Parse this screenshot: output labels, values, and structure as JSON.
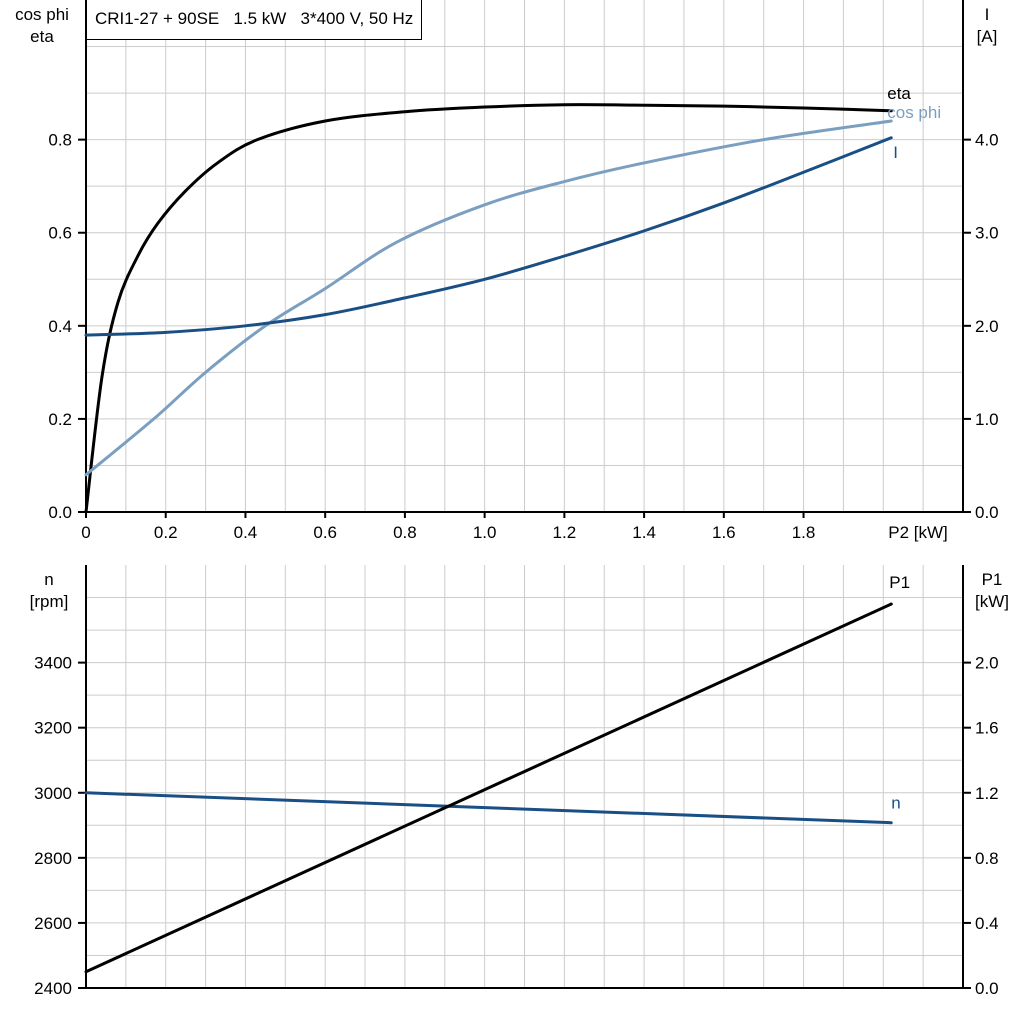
{
  "title": "CRI1-27 + 90SE   1.5 kW   3*400 V, 50 Hz",
  "chart_data": [
    {
      "type": "line",
      "xlabel": "P2 [kW]",
      "xlim": [
        0,
        2.2
      ],
      "xticks": [
        "0",
        "0.2",
        "0.4",
        "0.6",
        "0.8",
        "1.0",
        "1.2",
        "1.4",
        "1.6",
        "1.8"
      ],
      "ylabel_left": [
        "cos phi",
        "eta"
      ],
      "ylim_left": [
        0,
        1.1
      ],
      "yticks_left": [
        "0.0",
        "0.2",
        "0.4",
        "0.6",
        "0.8"
      ],
      "ylabel_right": [
        "I",
        "[A]"
      ],
      "ylim_right": [
        0,
        5.5
      ],
      "yticks_right": [
        "0.0",
        "1.0",
        "2.0",
        "3.0",
        "4.0"
      ],
      "grid": true,
      "series": [
        {
          "name": "eta",
          "axis": "left",
          "color": "#000000",
          "x": [
            0,
            0.04,
            0.08,
            0.13,
            0.18,
            0.25,
            0.33,
            0.43,
            0.6,
            0.8,
            1.0,
            1.2,
            1.4,
            1.6,
            1.8,
            2.02
          ],
          "y": [
            0,
            0.29,
            0.45,
            0.55,
            0.62,
            0.69,
            0.75,
            0.8,
            0.84,
            0.86,
            0.87,
            0.875,
            0.874,
            0.872,
            0.868,
            0.862
          ]
        },
        {
          "name": "cos phi",
          "axis": "left",
          "color": "#7b9fc0",
          "x": [
            0,
            0.17,
            0.3,
            0.45,
            0.6,
            0.78,
            1.0,
            1.2,
            1.4,
            1.7,
            2.02
          ],
          "y": [
            0.08,
            0.2,
            0.3,
            0.4,
            0.48,
            0.58,
            0.66,
            0.71,
            0.75,
            0.8,
            0.84
          ]
        },
        {
          "name": "I",
          "axis": "right",
          "color": "#1a4f85",
          "x": [
            0,
            0.2,
            0.4,
            0.6,
            0.8,
            1.0,
            1.2,
            1.4,
            1.6,
            1.8,
            2.02
          ],
          "y": [
            1.9,
            1.93,
            2.0,
            2.12,
            2.3,
            2.5,
            2.75,
            3.02,
            3.32,
            3.65,
            4.02
          ]
        }
      ]
    },
    {
      "type": "line",
      "xlim": [
        0,
        2.2
      ],
      "ylabel_left": [
        "n",
        "[rpm]"
      ],
      "ylim_left": [
        2400,
        3700
      ],
      "yticks_left": [
        "2400",
        "2600",
        "2800",
        "3000",
        "3200",
        "3400"
      ],
      "ylabel_right": [
        "P1",
        "[kW]"
      ],
      "ylim_right": [
        0,
        2.6
      ],
      "yticks_right": [
        "0.0",
        "0.4",
        "0.8",
        "1.2",
        "1.6",
        "2.0"
      ],
      "grid": true,
      "series": [
        {
          "name": "n",
          "axis": "left",
          "color": "#1a4f85",
          "x": [
            0,
            2.02
          ],
          "y": [
            3000,
            2908
          ]
        },
        {
          "name": "P1",
          "axis": "right",
          "color": "#000000",
          "x": [
            0,
            2.02
          ],
          "y": [
            0.1,
            2.36
          ]
        }
      ]
    }
  ]
}
